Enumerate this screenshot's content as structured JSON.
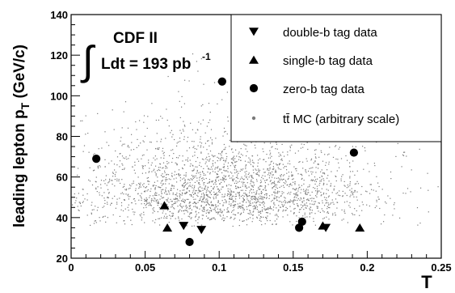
{
  "chart_data": {
    "type": "scatter",
    "title": "",
    "xlabel": "T",
    "ylabel": "leading lepton p_T (GeV/c)",
    "xlim": [
      0,
      0.25
    ],
    "ylim": [
      20,
      140
    ],
    "x_ticks": [
      "0",
      "0.05",
      "0.1",
      "0.15",
      "0.2",
      "0.25"
    ],
    "y_ticks": [
      "20",
      "40",
      "60",
      "80",
      "100",
      "120",
      "140"
    ],
    "grid": false,
    "legend_placement": "top-right",
    "annotation": {
      "experiment": "CDF II",
      "luminosity_text": "Ldt = 193 pb",
      "luminosity_exponent": "-1"
    },
    "legend": [
      {
        "label": "double-b tag data",
        "marker": "triangle-down"
      },
      {
        "label": "single-b tag data",
        "marker": "triangle-up"
      },
      {
        "label": "zero-b tag data",
        "marker": "circle"
      },
      {
        "label": "tt̄ MC (arbitrary scale)",
        "marker": "small-dot"
      }
    ],
    "series": [
      {
        "name": "double-b tag data",
        "marker": "triangle-down",
        "points": [
          {
            "x": 0.076,
            "y": 36
          },
          {
            "x": 0.088,
            "y": 34
          },
          {
            "x": 0.172,
            "y": 35
          }
        ]
      },
      {
        "name": "single-b tag data",
        "marker": "triangle-up",
        "points": [
          {
            "x": 0.063,
            "y": 46
          },
          {
            "x": 0.065,
            "y": 35
          },
          {
            "x": 0.17,
            "y": 36
          },
          {
            "x": 0.195,
            "y": 35
          }
        ]
      },
      {
        "name": "zero-b tag data",
        "marker": "circle",
        "points": [
          {
            "x": 0.017,
            "y": 69
          },
          {
            "x": 0.08,
            "y": 28
          },
          {
            "x": 0.102,
            "y": 107
          },
          {
            "x": 0.154,
            "y": 35
          },
          {
            "x": 0.156,
            "y": 38
          },
          {
            "x": 0.191,
            "y": 72
          }
        ]
      }
    ],
    "mc_cloud": {
      "name": "tt̄ MC (arbitrary scale)",
      "count": 2600,
      "x_center": 0.105,
      "x_spread": 0.05,
      "y_peak": 42,
      "y_spread": 22,
      "color": "#7a7a7a"
    }
  }
}
